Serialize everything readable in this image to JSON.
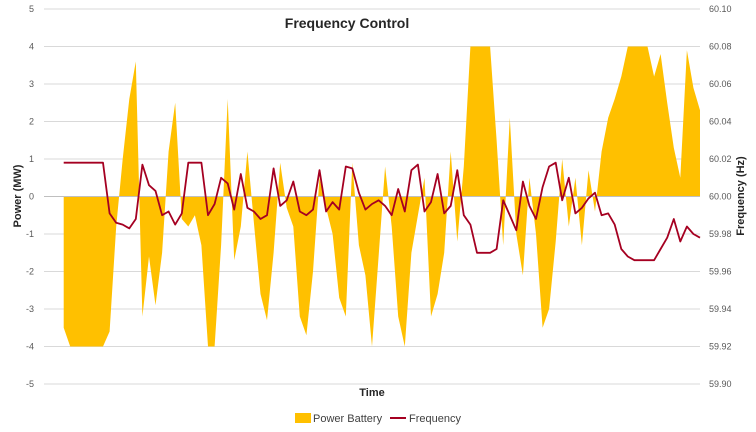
{
  "chart_data": {
    "type": "area",
    "title": "Frequency Control",
    "xlabel": "Time",
    "ylabel_left": "Power (MW)",
    "ylabel_right": "Frequency (Hz)",
    "ylim_left": [
      -5,
      5
    ],
    "ylim_right": [
      59.9,
      60.1
    ],
    "yticks_left": [
      "5",
      "4",
      "3",
      "2",
      "1",
      "0",
      "-1",
      "-2",
      "-3",
      "-4",
      "-5"
    ],
    "yticks_right": [
      "60.10",
      "60.08",
      "60.06",
      "60.04",
      "60.02",
      "60.00",
      "59.98",
      "59.96",
      "59.94",
      "59.92",
      "59.90"
    ],
    "grid": true,
    "legend_position": "bottom",
    "colors": {
      "battery": "#FFC000",
      "frequency": "#A50021",
      "grid": "#D9D9D9"
    },
    "x": [
      0,
      1,
      2,
      3,
      4,
      5,
      6,
      7,
      8,
      9,
      10,
      11,
      12,
      13,
      14,
      15,
      16,
      17,
      18,
      19,
      20,
      21,
      22,
      23,
      24,
      25,
      26,
      27,
      28,
      29,
      30,
      31,
      32,
      33,
      34,
      35,
      36,
      37,
      38,
      39,
      40,
      41,
      42,
      43,
      44,
      45,
      46,
      47,
      48,
      49,
      50,
      51,
      52,
      53,
      54,
      55,
      56,
      57,
      58,
      59,
      60,
      61,
      62,
      63,
      64,
      65,
      66,
      67,
      68,
      69,
      70,
      71,
      72,
      73,
      74,
      75,
      76,
      77,
      78,
      79,
      80,
      81,
      82,
      83,
      84,
      85,
      86,
      87,
      88,
      89,
      90,
      91,
      92,
      93,
      94,
      95,
      96,
      97,
      98,
      99,
      100
    ],
    "series": [
      {
        "name": "Power Battery",
        "kind": "area",
        "axis": "left",
        "values": [
          0,
          -0.3,
          -2.8,
          -3.5,
          -4,
          -4,
          -4,
          -4,
          -4,
          -4,
          -3.6,
          -0.8,
          1,
          2.6,
          3.6,
          -3.2,
          -1.6,
          -2.9,
          -1.5,
          1.2,
          2.5,
          -0.6,
          -0.8,
          -0.5,
          -1.3,
          -4,
          -4,
          -1.3,
          2.6,
          -1.7,
          -0.8,
          1.2,
          -0.7,
          -2.6,
          -3.3,
          -1.5,
          0.9,
          -0.3,
          -0.8,
          -3.2,
          -3.7,
          -2,
          0.5,
          -0.3,
          -1,
          -2.7,
          -3.2,
          0.9,
          -1.3,
          -2.1,
          -4,
          -1.6,
          0.8,
          -0.8,
          -3.2,
          -4,
          -1.5,
          -0.5,
          0.5,
          -3.2,
          -2.6,
          -1.5,
          1.2,
          -1.2,
          0.8,
          4,
          4,
          4,
          4,
          1.5,
          -1.3,
          2.1,
          -1,
          -2.1,
          0.5,
          -1,
          -3.5,
          -3,
          -1.2,
          1,
          -0.8,
          0.5,
          -1.3,
          0.7,
          -0.4,
          1.2,
          2.1,
          2.6,
          3.2,
          4,
          4,
          4,
          4,
          3.2,
          3.8,
          2.5,
          1.3,
          0.5,
          3.9,
          2.9,
          2.3
        ],
        "render": [
          0,
          0,
          0,
          1,
          1,
          1,
          1,
          1,
          1,
          1,
          1,
          1,
          1,
          1,
          1,
          1,
          1,
          1,
          1,
          1,
          1,
          1,
          1,
          1,
          1,
          1,
          1,
          1,
          1,
          1,
          1,
          1,
          1,
          1,
          1,
          1,
          1,
          1,
          1,
          1,
          1,
          1,
          1,
          1,
          1,
          1,
          1,
          1,
          1,
          1,
          1,
          1,
          1,
          1,
          1,
          1,
          1,
          1,
          1,
          1,
          1,
          1,
          1,
          1,
          1,
          1,
          1,
          1,
          1,
          1,
          1,
          1,
          1,
          1,
          1,
          1,
          1,
          1,
          1,
          1,
          1,
          1,
          1,
          1,
          1,
          1,
          1,
          1,
          1,
          1,
          1,
          1,
          1,
          1,
          1,
          1,
          1,
          1,
          1,
          1,
          1
        ]
      },
      {
        "name": "Frequency",
        "kind": "line",
        "axis": "right",
        "values": [
          59.982,
          59.985,
          59.988,
          60.018,
          60.018,
          60.018,
          60.018,
          60.018,
          60.018,
          60.018,
          59.991,
          59.986,
          59.985,
          59.983,
          59.988,
          60.017,
          60.006,
          60.003,
          59.99,
          59.992,
          59.985,
          59.991,
          60.018,
          60.018,
          60.018,
          59.99,
          59.996,
          60.01,
          60.007,
          59.993,
          60.012,
          59.994,
          59.992,
          59.988,
          59.99,
          60.015,
          59.995,
          59.998,
          60.008,
          59.992,
          59.99,
          59.993,
          60.014,
          59.992,
          59.997,
          59.993,
          60.016,
          60.015,
          60.002,
          59.993,
          59.996,
          59.998,
          59.995,
          59.99,
          60.004,
          59.992,
          60.014,
          60.017,
          59.992,
          59.997,
          60.012,
          59.991,
          59.995,
          60.014,
          59.99,
          59.985,
          59.97,
          59.97,
          59.97,
          59.972,
          59.998,
          59.99,
          59.982,
          60.008,
          59.995,
          59.988,
          60.005,
          60.016,
          60.018,
          59.998,
          60.01,
          59.991,
          59.994,
          59.999,
          60.002,
          59.99,
          59.991,
          59.985,
          59.972,
          59.968,
          59.966,
          59.966,
          59.966,
          59.966,
          59.972,
          59.978,
          59.988,
          59.976,
          59.984,
          59.98,
          59.978
        ],
        "render": [
          0,
          0,
          0,
          1,
          1,
          1,
          1,
          1,
          1,
          1,
          1,
          1,
          1,
          1,
          1,
          1,
          1,
          1,
          1,
          1,
          1,
          1,
          1,
          1,
          1,
          1,
          1,
          1,
          1,
          1,
          1,
          1,
          1,
          1,
          1,
          1,
          1,
          1,
          1,
          1,
          1,
          1,
          1,
          1,
          1,
          1,
          1,
          1,
          1,
          1,
          1,
          1,
          1,
          1,
          1,
          1,
          1,
          1,
          1,
          1,
          1,
          1,
          1,
          1,
          1,
          1,
          1,
          1,
          1,
          1,
          1,
          1,
          1,
          1,
          1,
          1,
          1,
          1,
          1,
          1,
          1,
          1,
          1,
          1,
          1,
          1,
          1,
          1,
          1,
          1,
          1,
          1,
          1,
          1,
          1,
          1,
          1,
          1,
          1,
          1,
          1
        ]
      }
    ]
  }
}
